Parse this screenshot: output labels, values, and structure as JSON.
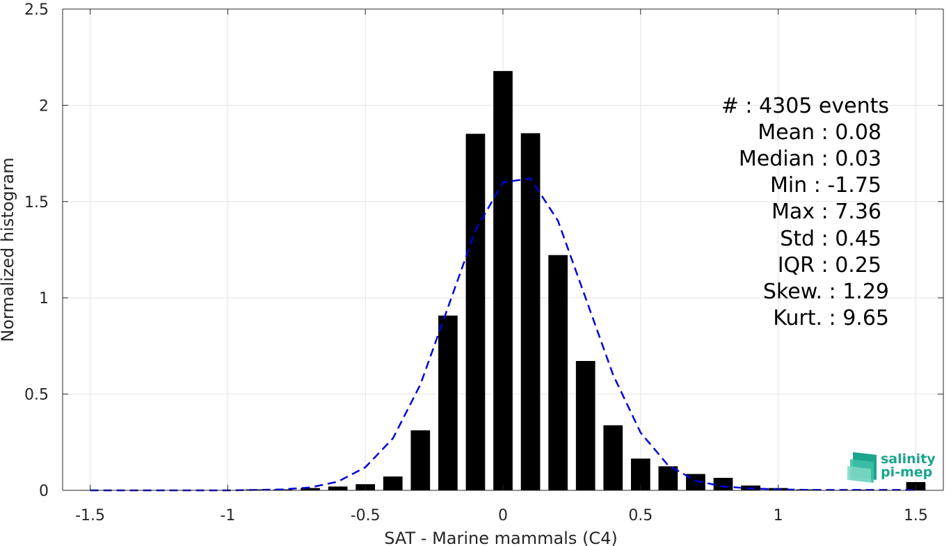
{
  "chart_data": {
    "type": "bar",
    "xlabel": "SAT - Marine mammals (C4)",
    "ylabel": "Normalized histogram",
    "xlim": [
      -1.6,
      1.6
    ],
    "ylim": [
      0,
      2.5
    ],
    "grid": true,
    "x_ticks": [
      -1.5,
      -1,
      -0.5,
      0,
      0.5,
      1,
      1.5
    ],
    "x_tick_labels": [
      "-1.5",
      "-1",
      "-0.5",
      "0",
      "0.5",
      "1",
      "1.5"
    ],
    "y_ticks": [
      0,
      0.5,
      1,
      1.5,
      2,
      2.5
    ],
    "y_tick_labels": [
      "0",
      "0.5",
      "1",
      "1.5",
      "2",
      "2.5"
    ],
    "bar_width": 0.07,
    "bins": [
      -1.5,
      -1.4,
      -1.3,
      -1.2,
      -1.1,
      -1.0,
      -0.9,
      -0.8,
      -0.7,
      -0.6,
      -0.5,
      -0.4,
      -0.3,
      -0.2,
      -0.1,
      0.0,
      0.1,
      0.2,
      0.3,
      0.4,
      0.5,
      0.6,
      0.7,
      0.8,
      0.9,
      1.0,
      1.1,
      1.2,
      1.3,
      1.4,
      1.5
    ],
    "values": [
      0.002,
      0.0,
      0.0,
      0.0,
      0.0,
      0.0,
      0.005,
      0.005,
      0.012,
      0.02,
      0.032,
      0.072,
      0.312,
      0.908,
      1.852,
      2.178,
      1.855,
      1.222,
      0.672,
      0.338,
      0.165,
      0.125,
      0.085,
      0.065,
      0.025,
      0.012,
      0.005,
      0.002,
      0.004,
      0.002,
      0.043
    ],
    "fit_curve": {
      "style": "dashed",
      "color": "#0000dd",
      "x": [
        -1.5,
        -1.4,
        -1.3,
        -1.2,
        -1.1,
        -1.0,
        -0.9,
        -0.8,
        -0.7,
        -0.6,
        -0.5,
        -0.4,
        -0.3,
        -0.2,
        -0.1,
        0.0,
        0.1,
        0.2,
        0.3,
        0.4,
        0.5,
        0.6,
        0.7,
        0.8,
        0.9,
        1.0,
        1.1,
        1.2,
        1.3,
        1.4,
        1.5
      ],
      "y": [
        0.0,
        0.0,
        0.0,
        0.0,
        0.0,
        0.0,
        0.002,
        0.005,
        0.015,
        0.045,
        0.12,
        0.27,
        0.55,
        0.95,
        1.35,
        1.6,
        1.62,
        1.4,
        1.0,
        0.6,
        0.3,
        0.13,
        0.05,
        0.02,
        0.01,
        0.005,
        0.003,
        0.002,
        0.002,
        0.002,
        0.002
      ]
    }
  },
  "stats": [
    "#  : 4305 events",
    "Mean : 0.08",
    "Median : 0.03",
    "Min : -1.75",
    "Max : 7.36",
    "Std : 0.45",
    "IQR : 0.25",
    "Skew. : 1.29",
    "Kurt. : 9.65"
  ],
  "logo": {
    "line1": "salinity",
    "line2": "pi-mep",
    "color": "#1aa58c"
  }
}
